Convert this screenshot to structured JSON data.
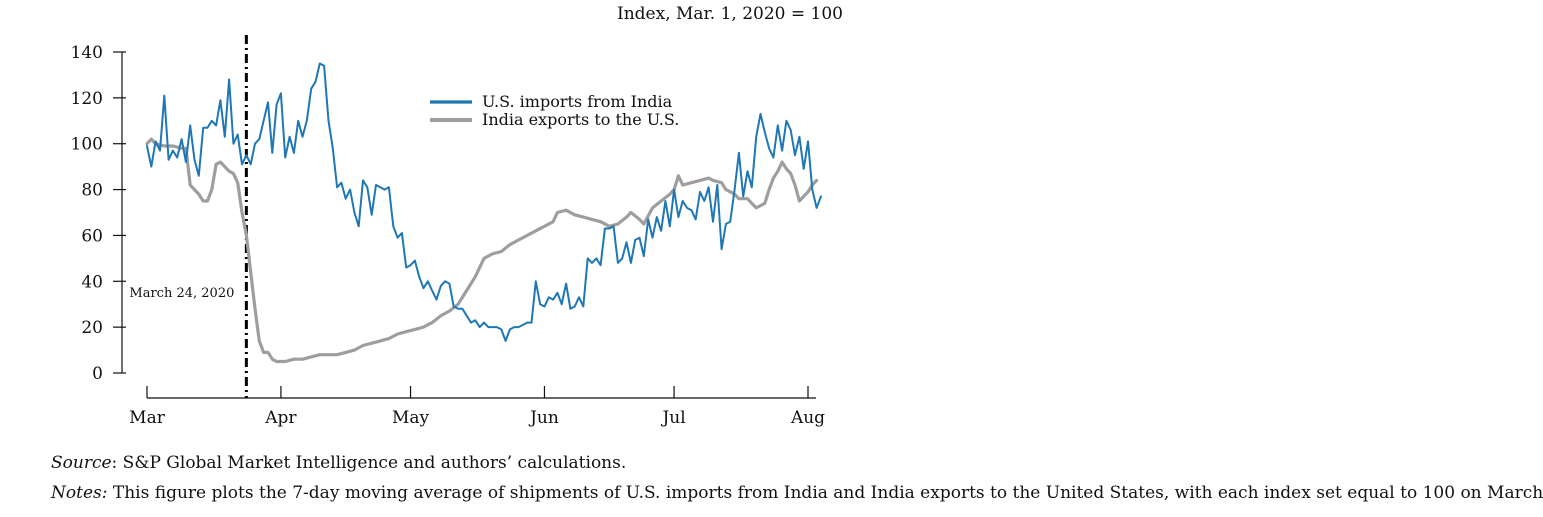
{
  "chart_data": {
    "type": "line",
    "unit_label": "Index, Mar. 1, 2020 = 100",
    "x_range": [
      "2020-03-01",
      "2020-08-01"
    ],
    "x_ticks": [
      {
        "label": "Mar",
        "date": "2020-03-01"
      },
      {
        "label": "Apr",
        "date": "2020-04-01"
      },
      {
        "label": "May",
        "date": "2020-05-01"
      },
      {
        "label": "Jun",
        "date": "2020-06-01"
      },
      {
        "label": "Jul",
        "date": "2020-07-01"
      },
      {
        "label": "Aug",
        "date": "2020-08-01"
      }
    ],
    "ylim": [
      0,
      140
    ],
    "y_ticks": [
      0,
      20,
      40,
      60,
      80,
      100,
      120,
      140
    ],
    "grid": false,
    "legend_position": "top-right",
    "annotation": {
      "label": "March 24, 2020",
      "date": "2020-03-24",
      "style": "dash-dot vertical line"
    },
    "series": [
      {
        "name": "U.S. imports from India",
        "color": "#1f77b4",
        "points": [
          [
            "2020-03-01",
            99
          ],
          [
            "2020-03-02",
            90
          ],
          [
            "2020-03-03",
            101
          ],
          [
            "2020-03-04",
            97
          ],
          [
            "2020-03-05",
            121
          ],
          [
            "2020-03-06",
            93
          ],
          [
            "2020-03-07",
            97
          ],
          [
            "2020-03-08",
            94
          ],
          [
            "2020-03-09",
            102
          ],
          [
            "2020-03-10",
            92
          ],
          [
            "2020-03-11",
            108
          ],
          [
            "2020-03-12",
            93
          ],
          [
            "2020-03-13",
            86
          ],
          [
            "2020-03-14",
            107
          ],
          [
            "2020-03-15",
            107
          ],
          [
            "2020-03-16",
            110
          ],
          [
            "2020-03-17",
            108
          ],
          [
            "2020-03-18",
            119
          ],
          [
            "2020-03-19",
            103
          ],
          [
            "2020-03-20",
            128
          ],
          [
            "2020-03-21",
            100
          ],
          [
            "2020-03-22",
            104
          ],
          [
            "2020-03-23",
            91
          ],
          [
            "2020-03-24",
            95
          ],
          [
            "2020-03-25",
            91
          ],
          [
            "2020-03-26",
            100
          ],
          [
            "2020-03-27",
            102
          ],
          [
            "2020-03-28",
            110
          ],
          [
            "2020-03-29",
            118
          ],
          [
            "2020-03-30",
            96
          ],
          [
            "2020-03-31",
            117
          ],
          [
            "2020-04-01",
            122
          ],
          [
            "2020-04-02",
            94
          ],
          [
            "2020-04-03",
            103
          ],
          [
            "2020-04-04",
            96
          ],
          [
            "2020-04-05",
            110
          ],
          [
            "2020-04-06",
            103
          ],
          [
            "2020-04-07",
            110
          ],
          [
            "2020-04-08",
            124
          ],
          [
            "2020-04-09",
            127
          ],
          [
            "2020-04-10",
            135
          ],
          [
            "2020-04-11",
            134
          ],
          [
            "2020-04-12",
            110
          ],
          [
            "2020-04-13",
            98
          ],
          [
            "2020-04-14",
            81
          ],
          [
            "2020-04-15",
            83
          ],
          [
            "2020-04-16",
            76
          ],
          [
            "2020-04-17",
            80
          ],
          [
            "2020-04-18",
            70
          ],
          [
            "2020-04-19",
            64
          ],
          [
            "2020-04-20",
            84
          ],
          [
            "2020-04-21",
            81
          ],
          [
            "2020-04-22",
            69
          ],
          [
            "2020-04-23",
            82
          ],
          [
            "2020-04-24",
            81
          ],
          [
            "2020-04-25",
            80
          ],
          [
            "2020-04-26",
            81
          ],
          [
            "2020-04-27",
            64
          ],
          [
            "2020-04-28",
            59
          ],
          [
            "2020-04-29",
            61
          ],
          [
            "2020-04-30",
            46
          ],
          [
            "2020-05-01",
            47
          ],
          [
            "2020-05-02",
            49
          ],
          [
            "2020-05-03",
            42
          ],
          [
            "2020-05-04",
            37
          ],
          [
            "2020-05-05",
            40
          ],
          [
            "2020-05-06",
            36
          ],
          [
            "2020-05-07",
            32
          ],
          [
            "2020-05-08",
            38
          ],
          [
            "2020-05-09",
            40
          ],
          [
            "2020-05-10",
            39
          ],
          [
            "2020-05-11",
            29
          ],
          [
            "2020-05-12",
            28
          ],
          [
            "2020-05-13",
            28
          ],
          [
            "2020-05-14",
            25
          ],
          [
            "2020-05-15",
            22
          ],
          [
            "2020-05-16",
            23
          ],
          [
            "2020-05-17",
            20
          ],
          [
            "2020-05-18",
            22
          ],
          [
            "2020-05-19",
            20
          ],
          [
            "2020-05-20",
            20
          ],
          [
            "2020-05-21",
            20
          ],
          [
            "2020-05-22",
            19
          ],
          [
            "2020-05-23",
            14
          ],
          [
            "2020-05-24",
            19
          ],
          [
            "2020-05-25",
            20
          ],
          [
            "2020-05-26",
            20
          ],
          [
            "2020-05-27",
            21
          ],
          [
            "2020-05-28",
            22
          ],
          [
            "2020-05-29",
            22
          ],
          [
            "2020-05-30",
            40
          ],
          [
            "2020-05-31",
            30
          ],
          [
            "2020-06-01",
            29
          ],
          [
            "2020-06-02",
            33
          ],
          [
            "2020-06-03",
            32
          ],
          [
            "2020-06-04",
            35
          ],
          [
            "2020-06-05",
            30
          ],
          [
            "2020-06-06",
            39
          ],
          [
            "2020-06-07",
            28
          ],
          [
            "2020-06-08",
            29
          ],
          [
            "2020-06-09",
            33
          ],
          [
            "2020-06-10",
            29
          ],
          [
            "2020-06-11",
            50
          ],
          [
            "2020-06-12",
            48
          ],
          [
            "2020-06-13",
            50
          ],
          [
            "2020-06-14",
            47
          ],
          [
            "2020-06-15",
            63
          ],
          [
            "2020-06-16",
            63
          ],
          [
            "2020-06-17",
            64
          ],
          [
            "2020-06-18",
            48
          ],
          [
            "2020-06-19",
            50
          ],
          [
            "2020-06-20",
            57
          ],
          [
            "2020-06-21",
            48
          ],
          [
            "2020-06-22",
            58
          ],
          [
            "2020-06-23",
            59
          ],
          [
            "2020-06-24",
            51
          ],
          [
            "2020-06-25",
            67
          ],
          [
            "2020-06-26",
            59
          ],
          [
            "2020-06-27",
            68
          ],
          [
            "2020-06-28",
            62
          ],
          [
            "2020-06-29",
            75
          ],
          [
            "2020-06-30",
            64
          ],
          [
            "2020-07-01",
            80
          ],
          [
            "2020-07-02",
            68
          ],
          [
            "2020-07-03",
            75
          ],
          [
            "2020-07-04",
            72
          ],
          [
            "2020-07-05",
            71
          ],
          [
            "2020-07-06",
            67
          ],
          [
            "2020-07-07",
            79
          ],
          [
            "2020-07-08",
            75
          ],
          [
            "2020-07-09",
            81
          ],
          [
            "2020-07-10",
            66
          ],
          [
            "2020-07-11",
            82
          ],
          [
            "2020-07-12",
            54
          ],
          [
            "2020-07-13",
            65
          ],
          [
            "2020-07-14",
            66
          ],
          [
            "2020-07-15",
            80
          ],
          [
            "2020-07-16",
            96
          ],
          [
            "2020-07-17",
            77
          ],
          [
            "2020-07-18",
            88
          ],
          [
            "2020-07-19",
            81
          ],
          [
            "2020-07-20",
            103
          ],
          [
            "2020-07-21",
            113
          ],
          [
            "2020-07-22",
            105
          ],
          [
            "2020-07-23",
            98
          ],
          [
            "2020-07-24",
            94
          ],
          [
            "2020-07-25",
            108
          ],
          [
            "2020-07-26",
            97
          ],
          [
            "2020-07-27",
            110
          ],
          [
            "2020-07-28",
            106
          ],
          [
            "2020-07-29",
            95
          ],
          [
            "2020-07-30",
            103
          ],
          [
            "2020-07-31",
            89
          ],
          [
            "2020-08-01",
            101
          ],
          [
            "2020-08-02",
            80
          ],
          [
            "2020-08-03",
            72
          ],
          [
            "2020-08-04",
            77
          ]
        ]
      },
      {
        "name": "India exports to the U.S.",
        "color": "#9e9e9e",
        "points": [
          [
            "2020-03-01",
            100
          ],
          [
            "2020-03-02",
            102
          ],
          [
            "2020-03-03",
            100
          ],
          [
            "2020-03-05",
            99
          ],
          [
            "2020-03-07",
            99
          ],
          [
            "2020-03-09",
            98
          ],
          [
            "2020-03-10",
            98
          ],
          [
            "2020-03-11",
            82
          ],
          [
            "2020-03-12",
            80
          ],
          [
            "2020-03-13",
            78
          ],
          [
            "2020-03-14",
            75
          ],
          [
            "2020-03-15",
            75
          ],
          [
            "2020-03-16",
            80
          ],
          [
            "2020-03-17",
            91
          ],
          [
            "2020-03-18",
            92
          ],
          [
            "2020-03-20",
            88
          ],
          [
            "2020-03-21",
            87
          ],
          [
            "2020-03-22",
            83
          ],
          [
            "2020-03-23",
            70
          ],
          [
            "2020-03-24",
            60
          ],
          [
            "2020-03-25",
            44
          ],
          [
            "2020-03-26",
            28
          ],
          [
            "2020-03-27",
            14
          ],
          [
            "2020-03-28",
            9
          ],
          [
            "2020-03-29",
            9
          ],
          [
            "2020-03-30",
            6
          ],
          [
            "2020-03-31",
            5
          ],
          [
            "2020-04-02",
            5
          ],
          [
            "2020-04-04",
            6
          ],
          [
            "2020-04-06",
            6
          ],
          [
            "2020-04-08",
            7
          ],
          [
            "2020-04-10",
            8
          ],
          [
            "2020-04-12",
            8
          ],
          [
            "2020-04-14",
            8
          ],
          [
            "2020-04-16",
            9
          ],
          [
            "2020-04-18",
            10
          ],
          [
            "2020-04-20",
            12
          ],
          [
            "2020-04-22",
            13
          ],
          [
            "2020-04-24",
            14
          ],
          [
            "2020-04-26",
            15
          ],
          [
            "2020-04-28",
            17
          ],
          [
            "2020-04-30",
            18
          ],
          [
            "2020-05-02",
            19
          ],
          [
            "2020-05-04",
            20
          ],
          [
            "2020-05-06",
            22
          ],
          [
            "2020-05-08",
            25
          ],
          [
            "2020-05-10",
            27
          ],
          [
            "2020-05-12",
            30
          ],
          [
            "2020-05-14",
            36
          ],
          [
            "2020-05-16",
            42
          ],
          [
            "2020-05-18",
            50
          ],
          [
            "2020-05-20",
            52
          ],
          [
            "2020-05-22",
            53
          ],
          [
            "2020-05-24",
            56
          ],
          [
            "2020-05-26",
            58
          ],
          [
            "2020-05-28",
            60
          ],
          [
            "2020-05-30",
            62
          ],
          [
            "2020-06-01",
            64
          ],
          [
            "2020-06-03",
            66
          ],
          [
            "2020-06-04",
            70
          ],
          [
            "2020-06-06",
            71
          ],
          [
            "2020-06-08",
            69
          ],
          [
            "2020-06-10",
            68
          ],
          [
            "2020-06-12",
            67
          ],
          [
            "2020-06-14",
            66
          ],
          [
            "2020-06-16",
            64
          ],
          [
            "2020-06-18",
            65
          ],
          [
            "2020-06-20",
            68
          ],
          [
            "2020-06-21",
            70
          ],
          [
            "2020-06-23",
            67
          ],
          [
            "2020-06-24",
            65
          ],
          [
            "2020-06-26",
            72
          ],
          [
            "2020-06-28",
            75
          ],
          [
            "2020-06-30",
            78
          ],
          [
            "2020-07-01",
            80
          ],
          [
            "2020-07-02",
            86
          ],
          [
            "2020-07-03",
            82
          ],
          [
            "2020-07-05",
            83
          ],
          [
            "2020-07-07",
            84
          ],
          [
            "2020-07-09",
            85
          ],
          [
            "2020-07-10",
            84
          ],
          [
            "2020-07-12",
            83
          ],
          [
            "2020-07-13",
            80
          ],
          [
            "2020-07-15",
            78
          ],
          [
            "2020-07-16",
            76
          ],
          [
            "2020-07-18",
            76
          ],
          [
            "2020-07-19",
            74
          ],
          [
            "2020-07-20",
            72
          ],
          [
            "2020-07-21",
            73
          ],
          [
            "2020-07-22",
            74
          ],
          [
            "2020-07-23",
            80
          ],
          [
            "2020-07-24",
            85
          ],
          [
            "2020-07-25",
            88
          ],
          [
            "2020-07-26",
            92
          ],
          [
            "2020-07-27",
            89
          ],
          [
            "2020-07-28",
            87
          ],
          [
            "2020-07-29",
            82
          ],
          [
            "2020-07-30",
            75
          ],
          [
            "2020-07-31",
            77
          ],
          [
            "2020-08-01",
            79
          ],
          [
            "2020-08-02",
            82
          ],
          [
            "2020-08-03",
            84
          ]
        ]
      }
    ]
  },
  "caption": {
    "source_label": "Source",
    "source_text": ": S&P Global Market Intelligence and authors’ calculations.",
    "notes_label": "Notes:",
    "notes_text": " This figure plots the 7-day moving average of shipments of U.S. imports from India and India exports to the United States, with each index set equal to 100 on March"
  }
}
